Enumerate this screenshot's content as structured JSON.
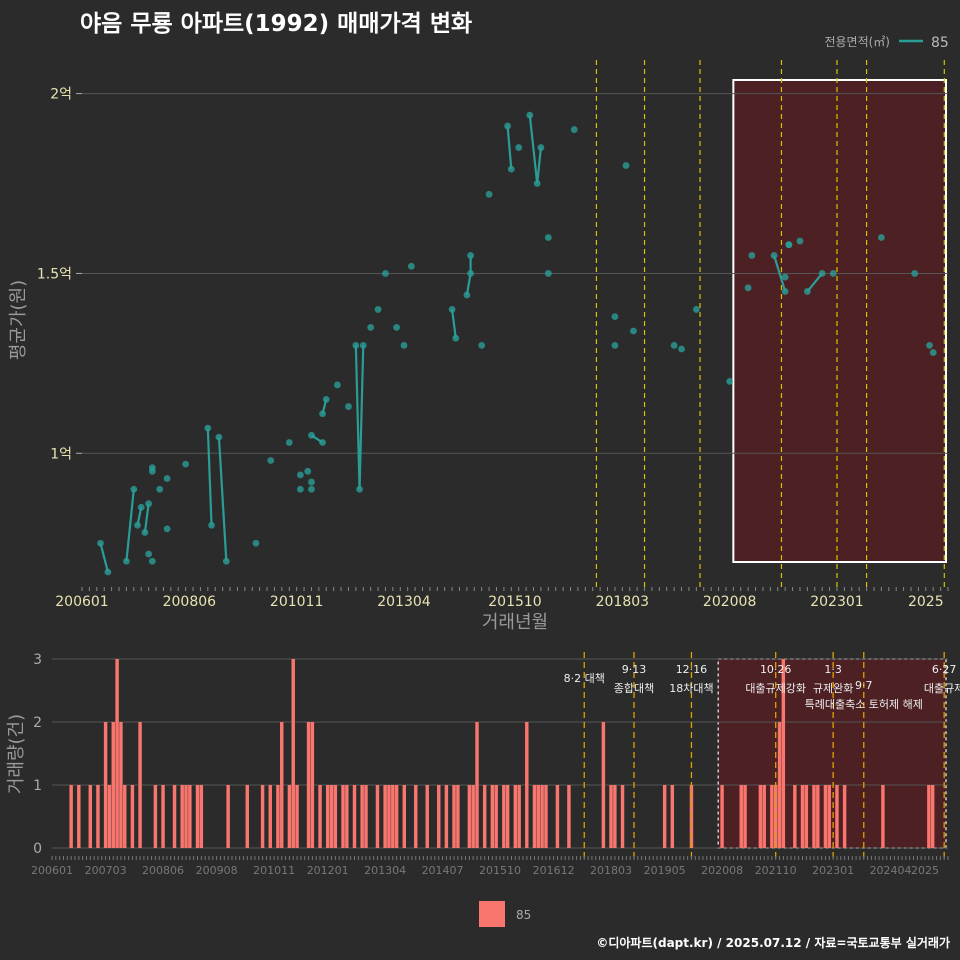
{
  "title": "야음 무룡 아파트(1992) 매매가격 변화",
  "credit": "©디아파트(dapt.kr) / 2025.07.12 / 자료=국토교통부 실거래가",
  "colors": {
    "line": "#2a9d96",
    "bar": "#f8766d",
    "bg": "#2b2b2c",
    "grid": "#555555",
    "vline": "#d4c400",
    "vline2": "#e0a000",
    "box": "#ffffff",
    "shade": "#5a1e20"
  },
  "chart_data": [
    {
      "type": "line",
      "title": "야음 무룡 아파트(1992) 매매가격 변화",
      "xlabel": "거래년월",
      "ylabel": "평균가(원)",
      "x_ticks": [
        "200601",
        "200806",
        "201011",
        "201304",
        "201510",
        "201803",
        "202008",
        "202301",
        "2025"
      ],
      "y_ticks": [
        "2억",
        "1.5억",
        "1억"
      ],
      "y_tick_values": [
        20000,
        15000,
        10000
      ],
      "ylim": [
        6200,
        20600
      ],
      "legend_title": "전용면적(㎡)",
      "legend_label": "85",
      "series": [
        {
          "name": "85",
          "points": [
            [
              "2006-06",
              7500
            ],
            [
              "2006-08",
              6700
            ],
            [
              "2007-01",
              7000
            ],
            [
              "2007-03",
              9000
            ],
            [
              "2007-04",
              8000
            ],
            [
              "2007-05",
              8500
            ],
            [
              "2007-06",
              7800
            ],
            [
              "2007-07",
              8600
            ],
            [
              "2007-08",
              9500
            ],
            [
              "2007-08",
              9600
            ],
            [
              "2007-07",
              7200
            ],
            [
              "2007-08",
              7000
            ],
            [
              "2007-10",
              9000
            ],
            [
              "2007-12",
              9300
            ],
            [
              "2007-12",
              7900
            ],
            [
              "2008-05",
              9700
            ],
            [
              "2008-11",
              10700
            ],
            [
              "2008-12",
              8000
            ],
            [
              "2009-02",
              10450
            ],
            [
              "2009-04",
              7000
            ],
            [
              "2009-12",
              7500
            ],
            [
              "2010-04",
              9800
            ],
            [
              "2010-09",
              10300
            ],
            [
              "2010-12",
              9000
            ],
            [
              "2010-12",
              9400
            ],
            [
              "2011-02",
              9500
            ],
            [
              "2011-03",
              9200
            ],
            [
              "2011-03",
              9000
            ],
            [
              "2011-03",
              10500
            ],
            [
              "2011-06",
              10300
            ],
            [
              "2011-06",
              11100
            ],
            [
              "2011-07",
              11500
            ],
            [
              "2011-10",
              11900
            ],
            [
              "2012-01",
              11300
            ],
            [
              "2012-03",
              13000
            ],
            [
              "2012-04",
              9000
            ],
            [
              "2012-05",
              13000
            ],
            [
              "2012-07",
              13500
            ],
            [
              "2012-09",
              14000
            ],
            [
              "2012-11",
              15000
            ],
            [
              "2013-02",
              13500
            ],
            [
              "2013-04",
              13000
            ],
            [
              "2013-06",
              15200
            ],
            [
              "2014-05",
              14000
            ],
            [
              "2014-06",
              13200
            ],
            [
              "2014-09",
              14400
            ],
            [
              "2014-10",
              15000
            ],
            [
              "2014-10",
              15500
            ],
            [
              "2015-01",
              13000
            ],
            [
              "2015-03",
              17200
            ],
            [
              "2015-08",
              19100
            ],
            [
              "2015-09",
              17900
            ],
            [
              "2015-11",
              18500
            ],
            [
              "2016-02",
              19400
            ],
            [
              "2016-04",
              17500
            ],
            [
              "2016-05",
              18500
            ],
            [
              "2016-07",
              16000
            ],
            [
              "2016-07",
              15000
            ],
            [
              "2017-02",
              19000
            ],
            [
              "2018-01",
              13800
            ],
            [
              "2018-01",
              13000
            ],
            [
              "2018-04",
              18000
            ],
            [
              "2018-06",
              13400
            ],
            [
              "2019-05",
              13000
            ],
            [
              "2019-07",
              12900
            ],
            [
              "2019-11",
              14000
            ],
            [
              "2020-08",
              12000
            ],
            [
              "2021-01",
              14600
            ],
            [
              "2021-02",
              15500
            ],
            [
              "2021-08",
              15500
            ],
            [
              "2021-11",
              14500
            ],
            [
              "2021-11",
              14900
            ],
            [
              "2021-12",
              15800
            ],
            [
              "2021-12",
              15800
            ],
            [
              "2022-03",
              15900
            ],
            [
              "2022-05",
              14500
            ],
            [
              "2022-09",
              15000
            ],
            [
              "2022-12",
              15000
            ],
            [
              "2024-01",
              16000
            ],
            [
              "2024-10",
              15000
            ],
            [
              "2025-02",
              13000
            ],
            [
              "2025-03",
              12800
            ]
          ]
        }
      ],
      "segments": [
        [
          0,
          1
        ],
        [
          2,
          3
        ],
        [
          4,
          5
        ],
        [
          6,
          7
        ],
        [
          8,
          9
        ],
        [
          16,
          17
        ],
        [
          18,
          19
        ],
        [
          28,
          29
        ],
        [
          30,
          31
        ],
        [
          34,
          35
        ],
        [
          35,
          36
        ],
        [
          43,
          44
        ],
        [
          45,
          46
        ],
        [
          46,
          47
        ],
        [
          50,
          51
        ],
        [
          53,
          54
        ],
        [
          54,
          55
        ],
        [
          69,
          70
        ],
        [
          72,
          73
        ],
        [
          75,
          76
        ]
      ]
    },
    {
      "type": "bar",
      "ylabel": "거래량(건)",
      "legend_label": "85",
      "x_ticks": [
        "200601",
        "200703",
        "200806",
        "200908",
        "201011",
        "201201",
        "201304",
        "201407",
        "201510",
        "201612",
        "201803",
        "201905",
        "202008",
        "202110",
        "202301",
        "202404",
        "2025"
      ],
      "y_ticks": [
        "3",
        "2",
        "1",
        "0"
      ],
      "y_tick_values": [
        3,
        2,
        1,
        0
      ],
      "ylim": [
        0,
        3
      ],
      "counts": [
        [
          "2006-06",
          1
        ],
        [
          "2006-08",
          1
        ],
        [
          "2006-11",
          1
        ],
        [
          "2007-01",
          1
        ],
        [
          "2007-03",
          2
        ],
        [
          "2007-04",
          1
        ],
        [
          "2007-05",
          2
        ],
        [
          "2007-06",
          3
        ],
        [
          "2007-07",
          2
        ],
        [
          "2007-08",
          1
        ],
        [
          "2007-10",
          1
        ],
        [
          "2007-12",
          2
        ],
        [
          "2008-04",
          1
        ],
        [
          "2008-06",
          1
        ],
        [
          "2008-09",
          1
        ],
        [
          "2008-11",
          1
        ],
        [
          "2008-12",
          1
        ],
        [
          "2009-01",
          1
        ],
        [
          "2009-03",
          1
        ],
        [
          "2009-04",
          1
        ],
        [
          "2009-11",
          1
        ],
        [
          "2010-04",
          1
        ],
        [
          "2010-08",
          1
        ],
        [
          "2010-10",
          1
        ],
        [
          "2010-12",
          1
        ],
        [
          "2011-01",
          2
        ],
        [
          "2011-03",
          1
        ],
        [
          "2011-04",
          3
        ],
        [
          "2011-05",
          1
        ],
        [
          "2011-08",
          2
        ],
        [
          "2011-09",
          2
        ],
        [
          "2011-11",
          1
        ],
        [
          "2012-01",
          1
        ],
        [
          "2012-02",
          1
        ],
        [
          "2012-03",
          1
        ],
        [
          "2012-05",
          1
        ],
        [
          "2012-06",
          1
        ],
        [
          "2012-08",
          1
        ],
        [
          "2012-10",
          1
        ],
        [
          "2012-11",
          1
        ],
        [
          "2013-02",
          1
        ],
        [
          "2013-04",
          1
        ],
        [
          "2013-05",
          1
        ],
        [
          "2013-06",
          1
        ],
        [
          "2013-07",
          1
        ],
        [
          "2013-09",
          1
        ],
        [
          "2013-12",
          1
        ],
        [
          "2014-03",
          1
        ],
        [
          "2014-06",
          1
        ],
        [
          "2014-08",
          1
        ],
        [
          "2014-10",
          1
        ],
        [
          "2014-11",
          1
        ],
        [
          "2015-02",
          1
        ],
        [
          "2015-03",
          1
        ],
        [
          "2015-04",
          2
        ],
        [
          "2015-06",
          1
        ],
        [
          "2015-08",
          1
        ],
        [
          "2015-09",
          1
        ],
        [
          "2015-11",
          1
        ],
        [
          "2015-12",
          1
        ],
        [
          "2016-02",
          1
        ],
        [
          "2016-03",
          1
        ],
        [
          "2016-05",
          2
        ],
        [
          "2016-07",
          1
        ],
        [
          "2016-08",
          1
        ],
        [
          "2016-09",
          1
        ],
        [
          "2016-10",
          1
        ],
        [
          "2017-01",
          1
        ],
        [
          "2017-04",
          1
        ],
        [
          "2018-01",
          2
        ],
        [
          "2018-03",
          1
        ],
        [
          "2018-04",
          1
        ],
        [
          "2018-06",
          1
        ],
        [
          "2019-05",
          1
        ],
        [
          "2019-07",
          1
        ],
        [
          "2019-12",
          1
        ],
        [
          "2020-08",
          1
        ],
        [
          "2021-01",
          1
        ],
        [
          "2021-02",
          1
        ],
        [
          "2021-06",
          1
        ],
        [
          "2021-07",
          1
        ],
        [
          "2021-09",
          1
        ],
        [
          "2021-10",
          1
        ],
        [
          "2021-11",
          2
        ],
        [
          "2021-12",
          3
        ],
        [
          "2022-03",
          1
        ],
        [
          "2022-05",
          1
        ],
        [
          "2022-06",
          1
        ],
        [
          "2022-08",
          1
        ],
        [
          "2022-09",
          1
        ],
        [
          "2022-11",
          1
        ],
        [
          "2022-12",
          1
        ],
        [
          "2023-02",
          1
        ],
        [
          "2023-04",
          1
        ],
        [
          "2024-02",
          1
        ],
        [
          "2025-02",
          1
        ],
        [
          "2025-03",
          1
        ]
      ]
    }
  ],
  "events": [
    {
      "date": "2017-08",
      "label1": "8·2 대책",
      "label2": ""
    },
    {
      "date": "2018-09",
      "label1": "9·13",
      "label2": "종합대책"
    },
    {
      "date": "2019-12",
      "label1": "12·16",
      "label2": "18차대책"
    },
    {
      "date": "2021-10",
      "label1": "10·26",
      "label2": "대출규제강화"
    },
    {
      "date": "2023-01",
      "label1": "1·3",
      "label2": "규제완화"
    },
    {
      "date": "2023-09",
      "label1": "9·7",
      "label2": "특례대출축소 토허제 해제"
    },
    {
      "date": "2025-06",
      "label1": "6·27",
      "label2": "대출규제"
    }
  ]
}
